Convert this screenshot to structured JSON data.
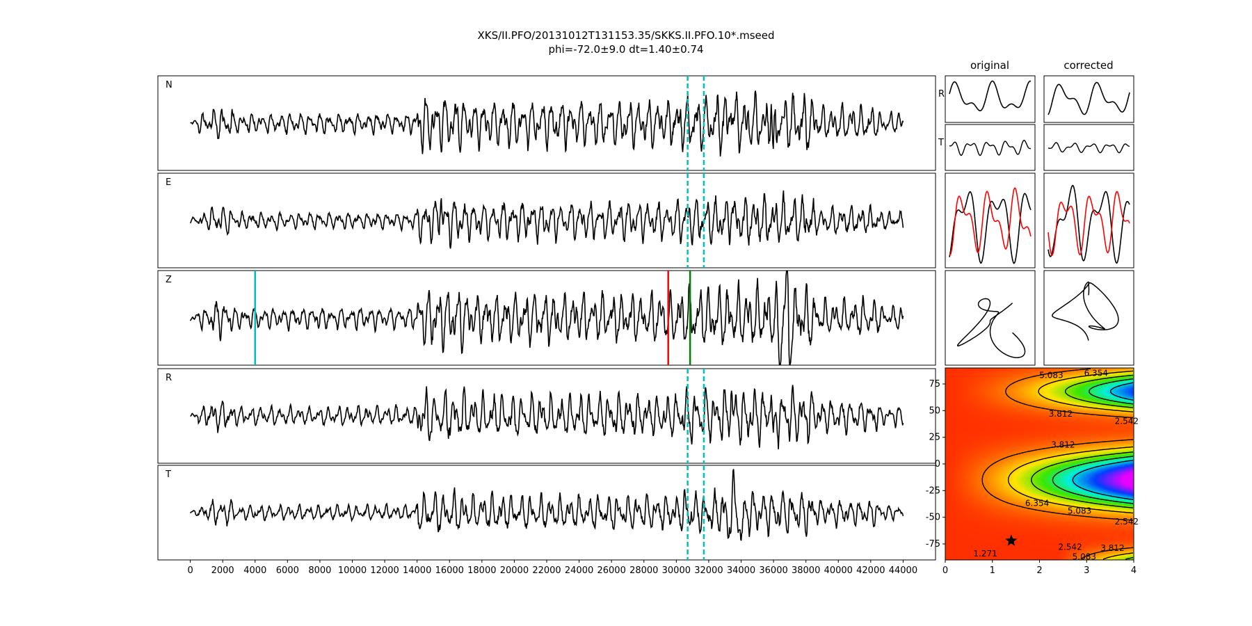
{
  "title": {
    "line1": "XKS/II.PFO/20131012T131153.35/SKKS.II.PFO.10*.mseed",
    "line2": "phi=-72.0±9.0 dt=1.40±0.74"
  },
  "colors": {
    "trace": "#000000",
    "window_marker": "#00bfbf",
    "pick_cyan": "#00bfbf",
    "pick_red": "#ff0000",
    "pick_green": "#008000",
    "overlay_red": "#ff0000",
    "star": "#000000"
  },
  "chart_data": [
    {
      "type": "line",
      "name": "seismogram-traces",
      "panels": [
        {
          "label": "N",
          "seed": 11,
          "amp": 0.72,
          "spikes": [
            [
              35970,
              -1.2
            ],
            [
              35880,
              0.85
            ],
            [
              33400,
              0.45
            ]
          ]
        },
        {
          "label": "E",
          "seed": 23,
          "amp": 0.6,
          "spikes": [
            [
              15450,
              0.45
            ],
            [
              33400,
              0.35
            ]
          ]
        },
        {
          "label": "Z",
          "seed": 37,
          "amp": 0.78,
          "spikes": [
            [
              36400,
              -1.05
            ],
            [
              36800,
              1.0
            ],
            [
              37000,
              -0.9
            ]
          ]
        },
        {
          "label": "R",
          "seed": 41,
          "amp": 0.68,
          "spikes": [
            [
              35970,
              -1.15
            ],
            [
              35880,
              1.0
            ],
            [
              33400,
              0.4
            ]
          ]
        },
        {
          "label": "T",
          "seed": 53,
          "amp": 0.55,
          "spikes": [
            [
              33500,
              0.55
            ],
            [
              34000,
              -0.7
            ],
            [
              33200,
              -0.45
            ]
          ]
        }
      ],
      "x_range": [
        -2000,
        46000
      ],
      "trace_span": [
        0,
        44000
      ],
      "xticks": [
        0,
        2000,
        4000,
        6000,
        8000,
        10000,
        12000,
        14000,
        16000,
        18000,
        20000,
        22000,
        24000,
        26000,
        28000,
        30000,
        32000,
        34000,
        36000,
        38000,
        40000,
        42000,
        44000
      ],
      "window_markers_x": [
        30700,
        31700
      ],
      "window_marker_panels": [
        "N",
        "E",
        "R",
        "T"
      ],
      "picks": {
        "cyan": 4000,
        "red": 29500,
        "green": 30850
      }
    },
    {
      "type": "line",
      "name": "particle-comparison",
      "column_titles": [
        "original",
        "corrected"
      ],
      "row_labels": [
        "R",
        "T"
      ]
    },
    {
      "type": "heatmap",
      "name": "energy-grid",
      "x_range": [
        0,
        4
      ],
      "y_range": [
        -90,
        90
      ],
      "xticks": [
        0,
        1,
        2,
        3,
        4
      ],
      "yticks": [
        75,
        50,
        25,
        0,
        -25,
        -50,
        -75
      ],
      "contour_levels": [
        "1.271",
        "2.542",
        "3.812",
        "5.083",
        "6.354"
      ],
      "contour_labels": [
        {
          "text": "5.083",
          "x": 2.25,
          "y": 83
        },
        {
          "text": "6.354",
          "x": 3.2,
          "y": 85
        },
        {
          "text": "3.812",
          "x": 2.45,
          "y": 47
        },
        {
          "text": "2.542",
          "x": 3.85,
          "y": 40
        },
        {
          "text": "3.812",
          "x": 2.5,
          "y": 18
        },
        {
          "text": "6.354",
          "x": 1.95,
          "y": -37
        },
        {
          "text": "5.083",
          "x": 2.85,
          "y": -44
        },
        {
          "text": "2.542",
          "x": 3.85,
          "y": -54
        },
        {
          "text": "1.271",
          "x": 0.85,
          "y": -84
        },
        {
          "text": "2.542",
          "x": 2.65,
          "y": -78
        },
        {
          "text": "3.812",
          "x": 3.55,
          "y": -79
        },
        {
          "text": "5.083",
          "x": 2.95,
          "y": -87
        }
      ],
      "best_fit": {
        "dt": 1.4,
        "phi": -72.0
      }
    }
  ]
}
